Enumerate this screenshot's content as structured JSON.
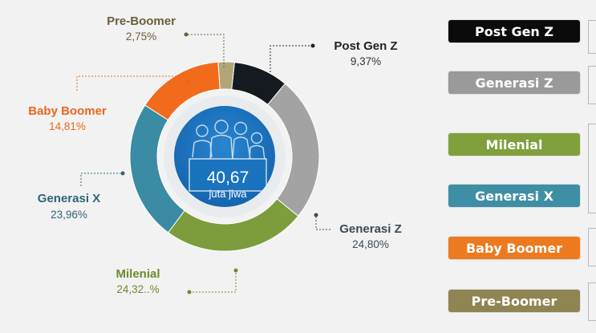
{
  "chart_data": {
    "type": "pie",
    "center_value": "40,67",
    "center_unit": "juta jiwa",
    "slices": [
      {
        "name": "Post Gen Z",
        "value": 9.37,
        "label": "9,37%",
        "color": "#141a20"
      },
      {
        "name": "Generasi Z",
        "value": 24.8,
        "label": "24,80%",
        "color": "#a3a3a3"
      },
      {
        "name": "Milenial",
        "value": 24.32,
        "label": "24,32..%",
        "color": "#7d9c3c"
      },
      {
        "name": "Generasi X",
        "value": 23.96,
        "label": "23,96%",
        "color": "#3a8ba3"
      },
      {
        "name": "Baby Boomer",
        "value": 14.81,
        "label": "14,81%",
        "color": "#f26a1b"
      },
      {
        "name": "Pre-Boomer",
        "value": 2.75,
        "label": "2,75%",
        "color": "#b2a577"
      }
    ]
  },
  "legend": [
    {
      "label": "Post Gen Z",
      "color": "#0b0b0b"
    },
    {
      "label": "Generasi Z",
      "color": "#9a9a9a"
    },
    {
      "label": "Milenial",
      "color": "#7fa03c"
    },
    {
      "label": "Generasi X",
      "color": "#3e8ea6"
    },
    {
      "label": "Baby Boomer",
      "color": "#ee7a1f"
    },
    {
      "label": "Pre-Boomer",
      "color": "#8f8552"
    }
  ],
  "callout_colors": {
    "Post Gen Z": "#222222",
    "Generasi Z": "#3b4a55",
    "Milenial": "#6e8a30",
    "Generasi X": "#2f6577",
    "Baby Boomer": "#e8681e",
    "Pre-Boomer": "#6b5e3e"
  },
  "people_icon": "family-people-icon"
}
